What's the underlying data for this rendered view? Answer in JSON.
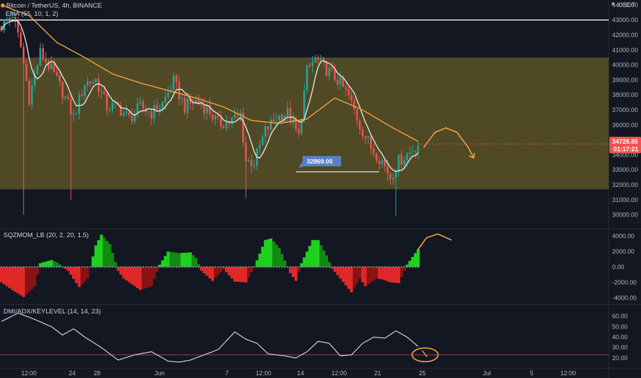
{
  "header": {
    "title": "Bitcoin / TetherUS, 4h, BINANCE",
    "ema_label": "EMA (55, 10, 1, 2)",
    "currency": "USDT"
  },
  "price_tag": {
    "value": "34728.85",
    "countdown": "01:17:21"
  },
  "annotation": {
    "label": "32869.00"
  },
  "colors": {
    "background": "#131722",
    "zone": "#5a5227",
    "candle_up": "#26a69a",
    "candle_down": "#ef5350",
    "ema": "#f7a43d",
    "mom_up_bright": "#1fd11f",
    "mom_up_dark": "#138a13",
    "mom_down_bright": "#e02828",
    "mom_down_dark": "#8a1414",
    "adx_line": "#d1d4dc",
    "key_level": "#b23a3a",
    "label_box": "#5b7fc6"
  },
  "chart_data": [
    {
      "type": "candlestick",
      "panel": "price",
      "ylim": [
        29200,
        44200
      ],
      "y_ticks": [
        "44000.00",
        "43000.00",
        "42000.00",
        "41000.00",
        "40000.00",
        "39000.00",
        "38000.00",
        "37000.00",
        "36000.00",
        "35000.00",
        "34000.00",
        "33000.00",
        "32000.00",
        "31000.00",
        "30000.00"
      ],
      "x_ticks": [
        "12:00",
        "24",
        "28",
        "Jun",
        "7",
        "12:00",
        "14",
        "12:00",
        "21",
        "25",
        "Jul",
        "5",
        "12:00"
      ],
      "horizontal_line": 43000,
      "zone": [
        31700,
        40500
      ],
      "close_points": [
        [
          0,
          42600
        ],
        [
          4,
          43400
        ],
        [
          7,
          41200
        ],
        [
          10,
          37800
        ],
        [
          14,
          40800
        ],
        [
          18,
          39700
        ],
        [
          22,
          38200
        ],
        [
          26,
          36500
        ],
        [
          30,
          38800
        ],
        [
          34,
          39000
        ],
        [
          38,
          37200
        ],
        [
          42,
          37200
        ],
        [
          46,
          36400
        ],
        [
          50,
          37200
        ],
        [
          54,
          36800
        ],
        [
          58,
          37400
        ],
        [
          62,
          38900
        ],
        [
          66,
          37200
        ],
        [
          70,
          37600
        ],
        [
          74,
          37100
        ],
        [
          78,
          36100
        ],
        [
          82,
          36200
        ],
        [
          86,
          36700
        ],
        [
          88,
          33600
        ],
        [
          91,
          33500
        ],
        [
          95,
          35600
        ],
        [
          99,
          36500
        ],
        [
          103,
          36800
        ],
        [
          107,
          35200
        ],
        [
          110,
          39600
        ],
        [
          113,
          40400
        ],
        [
          117,
          39700
        ],
        [
          121,
          39000
        ],
        [
          125,
          37900
        ],
        [
          129,
          36000
        ],
        [
          133,
          34500
        ],
        [
          137,
          33600
        ],
        [
          140,
          32500
        ],
        [
          143,
          33600
        ],
        [
          147,
          34200
        ],
        [
          150,
          34729
        ]
      ],
      "spikes": [
        {
          "i": 8,
          "low": 30000
        },
        {
          "i": 25,
          "low": 31000
        },
        {
          "i": 88,
          "low": 31100
        },
        {
          "i": 142,
          "low": 29900
        }
      ],
      "ema_points": [
        [
          0,
          44000
        ],
        [
          10,
          43300
        ],
        [
          20,
          41500
        ],
        [
          30,
          40500
        ],
        [
          40,
          39400
        ],
        [
          50,
          38800
        ],
        [
          60,
          38300
        ],
        [
          70,
          37800
        ],
        [
          80,
          37200
        ],
        [
          90,
          36300
        ],
        [
          100,
          36100
        ],
        [
          110,
          36400
        ],
        [
          120,
          37800
        ],
        [
          130,
          37000
        ],
        [
          140,
          35900
        ],
        [
          150,
          34900
        ]
      ],
      "forecast_points": [
        [
          152,
          34500
        ],
        [
          156,
          35500
        ],
        [
          160,
          35800
        ],
        [
          164,
          35500
        ],
        [
          168,
          34500
        ],
        [
          170,
          33800
        ]
      ],
      "annotation_segment": {
        "from": 106,
        "to": 136,
        "y": 32869
      }
    },
    {
      "type": "histogram",
      "panel": "momentum",
      "title": "SQZMOM_LB (20, 2, 20, 1.5)",
      "ylim": [
        -4600,
        4600
      ],
      "y_ticks": [
        "4000.00",
        "2000.00",
        "0.00",
        "-2000.00",
        "-4000.00"
      ],
      "points": [
        [
          0,
          -2000
        ],
        [
          4,
          -3000
        ],
        [
          8,
          -3900
        ],
        [
          12,
          -2500
        ],
        [
          14,
          500
        ],
        [
          18,
          900
        ],
        [
          20,
          600
        ],
        [
          24,
          -500
        ],
        [
          28,
          -2600
        ],
        [
          31,
          -1500
        ],
        [
          34,
          2800
        ],
        [
          36,
          4200
        ],
        [
          39,
          3000
        ],
        [
          42,
          -500
        ],
        [
          44,
          -1500
        ],
        [
          50,
          -3000
        ],
        [
          54,
          -2500
        ],
        [
          57,
          300
        ],
        [
          60,
          2000
        ],
        [
          64,
          1800
        ],
        [
          68,
          1900
        ],
        [
          70,
          1200
        ],
        [
          72,
          -500
        ],
        [
          76,
          -1800
        ],
        [
          80,
          -300
        ],
        [
          84,
          -1900
        ],
        [
          88,
          -2000
        ],
        [
          91,
          0
        ],
        [
          95,
          3500
        ],
        [
          97,
          3700
        ],
        [
          100,
          2500
        ],
        [
          104,
          -800
        ],
        [
          106,
          -1800
        ],
        [
          108,
          500
        ],
        [
          112,
          3500
        ],
        [
          114,
          3500
        ],
        [
          117,
          1500
        ],
        [
          119,
          -200
        ],
        [
          122,
          -1500
        ],
        [
          126,
          -3300
        ],
        [
          129,
          -1500
        ],
        [
          131,
          -2500
        ],
        [
          135,
          -1500
        ],
        [
          137,
          -1600
        ],
        [
          140,
          -2000
        ],
        [
          143,
          -2100
        ],
        [
          145,
          -500
        ],
        [
          146,
          300
        ],
        [
          150,
          2300
        ]
      ],
      "forecast_points": [
        [
          150,
          2300
        ],
        [
          153,
          3800
        ],
        [
          157,
          4300
        ],
        [
          162,
          3500
        ]
      ]
    },
    {
      "type": "line",
      "panel": "dmi_adx",
      "title": "DMI/ADX/KEYLEVEL (14, 14, 23)",
      "ylim": [
        12,
        68
      ],
      "y_ticks": [
        "60.00",
        "50.00",
        "40.00",
        "30.00",
        "20.00"
      ],
      "key_level": 23,
      "points": [
        [
          0,
          55
        ],
        [
          6,
          63
        ],
        [
          12,
          57
        ],
        [
          18,
          50
        ],
        [
          22,
          42
        ],
        [
          26,
          48
        ],
        [
          30,
          40
        ],
        [
          36,
          30
        ],
        [
          42,
          18
        ],
        [
          48,
          23
        ],
        [
          54,
          26
        ],
        [
          60,
          17
        ],
        [
          64,
          16
        ],
        [
          68,
          18
        ],
        [
          72,
          22
        ],
        [
          78,
          28
        ],
        [
          84,
          45
        ],
        [
          88,
          38
        ],
        [
          92,
          34
        ],
        [
          96,
          24
        ],
        [
          102,
          22
        ],
        [
          106,
          20
        ],
        [
          110,
          26
        ],
        [
          114,
          36
        ],
        [
          118,
          34
        ],
        [
          122,
          22
        ],
        [
          126,
          23
        ],
        [
          130,
          34
        ],
        [
          134,
          40
        ],
        [
          138,
          39
        ],
        [
          142,
          46
        ],
        [
          146,
          40
        ],
        [
          150,
          31
        ]
      ],
      "marker_value": 23
    }
  ]
}
